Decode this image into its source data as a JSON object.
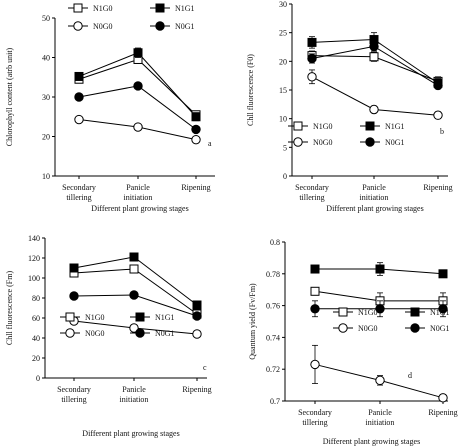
{
  "chart_data": [
    {
      "type": "line",
      "panel_letter": "a",
      "ylabel": "Chlorophyll content (atrb unit)",
      "xlabel": "Different plant growing stages",
      "categories": [
        "Secondary\ntillering",
        "Panicle\ninitiation",
        "Ripening"
      ],
      "ylim": [
        10,
        50
      ],
      "yticks": [
        10,
        20,
        30,
        40,
        50
      ],
      "legend_position": "top",
      "series": [
        {
          "name": "N1G0",
          "marker": "square-open",
          "values": [
            34.5,
            39.5,
            25.5
          ],
          "errors": [
            0.8,
            1.0,
            0.8
          ]
        },
        {
          "name": "N1G1",
          "marker": "square-filled",
          "values": [
            35.2,
            41.2,
            25.0
          ],
          "errors": [
            0.8,
            1.2,
            1.0
          ]
        },
        {
          "name": "N0G0",
          "marker": "circle-open",
          "values": [
            24.3,
            22.4,
            19.2
          ],
          "errors": [
            0.8,
            0.8,
            0.8
          ]
        },
        {
          "name": "N0G1",
          "marker": "circle-filled",
          "values": [
            30.0,
            32.8,
            21.8
          ],
          "errors": [
            0.5,
            0.5,
            0.5
          ]
        }
      ]
    },
    {
      "type": "line",
      "panel_letter": "b",
      "ylabel": "Chll fluorescence (F0)",
      "xlabel": "Different plant growing stages",
      "categories": [
        "Secondary\ntillering",
        "Panicle\ninitiation",
        "Ripening"
      ],
      "ylim": [
        0,
        30
      ],
      "yticks": [
        0,
        5,
        10,
        15,
        20,
        25,
        30
      ],
      "legend_position": "bottom",
      "series": [
        {
          "name": "N1G0",
          "marker": "square-open",
          "values": [
            21.0,
            20.8,
            16.5
          ],
          "errors": [
            0.8,
            0.8,
            0.8
          ]
        },
        {
          "name": "N1G1",
          "marker": "square-filled",
          "values": [
            23.3,
            23.8,
            16.2
          ],
          "errors": [
            1.0,
            1.2,
            0.8
          ]
        },
        {
          "name": "N0G0",
          "marker": "circle-open",
          "values": [
            17.3,
            11.6,
            10.6
          ],
          "errors": [
            1.2,
            0.6,
            0.6
          ]
        },
        {
          "name": "N0G1",
          "marker": "circle-filled",
          "values": [
            20.5,
            22.6,
            15.8
          ],
          "errors": [
            0.8,
            0.8,
            0.6
          ]
        }
      ]
    },
    {
      "type": "line",
      "panel_letter": "c",
      "ylabel": "Chll fluorescence (Fm)",
      "xlabel": "Different plant growing stages",
      "categories": [
        "Secondary\ntillering",
        "Panicle\ninitiation",
        "Ripening"
      ],
      "ylim": [
        0,
        140
      ],
      "yticks": [
        0,
        20,
        40,
        60,
        80,
        100,
        120,
        140
      ],
      "legend_position": "bottom",
      "series": [
        {
          "name": "N1G0",
          "marker": "square-open",
          "values": [
            105,
            109,
            64
          ],
          "errors": [
            3,
            3,
            3
          ]
        },
        {
          "name": "N1G1",
          "marker": "square-filled",
          "values": [
            110,
            121,
            73
          ],
          "errors": [
            3,
            3,
            3
          ]
        },
        {
          "name": "N0G0",
          "marker": "circle-open",
          "values": [
            57,
            50,
            44
          ],
          "errors": [
            3,
            3,
            3
          ]
        },
        {
          "name": "N0G1",
          "marker": "circle-filled",
          "values": [
            82,
            83,
            62
          ],
          "errors": [
            2,
            2,
            2
          ]
        }
      ]
    },
    {
      "type": "line",
      "panel_letter": "d",
      "ylabel": "Quantum yield (Fv/Fm)",
      "xlabel": "Different plant growing stages",
      "categories": [
        "Secondary\ntillering",
        "Panicle\ninitiation",
        "Ripening"
      ],
      "ylim": [
        0.7,
        0.8
      ],
      "yticks": [
        0.7,
        0.72,
        0.74,
        0.76,
        0.78,
        0.8
      ],
      "tick_labels": [
        "0.7",
        "0.72",
        "0.74",
        "0.76",
        "0.78",
        "0.8"
      ],
      "legend_position": "bottom",
      "series": [
        {
          "name": "N1G0",
          "marker": "square-open",
          "values": [
            0.769,
            0.763,
            0.763
          ],
          "errors": [
            0.001,
            0.005,
            0.005
          ]
        },
        {
          "name": "N1G1",
          "marker": "square-filled",
          "values": [
            0.783,
            0.783,
            0.78
          ],
          "errors": [
            0.002,
            0.004,
            0.002
          ]
        },
        {
          "name": "N0G0",
          "marker": "circle-open",
          "values": [
            0.723,
            0.713,
            0.702
          ],
          "errors": [
            0.012,
            0.003,
            0.002
          ]
        },
        {
          "name": "N0G1",
          "marker": "circle-filled",
          "values": [
            0.758,
            0.758,
            0.758
          ],
          "errors": [
            0.005,
            0.005,
            0.005
          ]
        }
      ]
    }
  ]
}
